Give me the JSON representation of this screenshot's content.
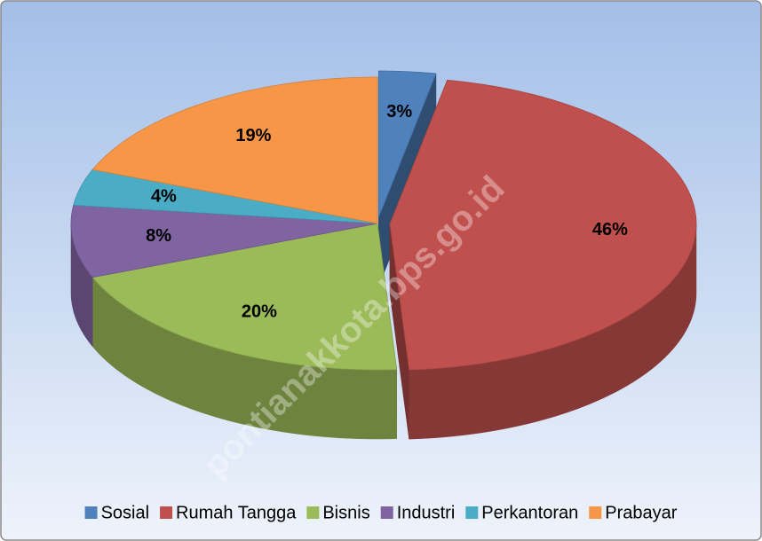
{
  "chart_data": {
    "type": "pie3d",
    "categories": [
      "Sosial",
      "Rumah Tangga",
      "Bisnis",
      "Industri",
      "Perkantoran",
      "Prabayar"
    ],
    "values": [
      3,
      46,
      20,
      8,
      4,
      19
    ],
    "value_labels": [
      "3%",
      "46%",
      "20%",
      "8%",
      "4%",
      "19%"
    ],
    "colors": [
      "#4f81bd",
      "#c0504d",
      "#9bbb59",
      "#8064a2",
      "#4bacc6",
      "#f79646"
    ],
    "legend": "bottom",
    "watermark": "pontianakkota.bps.go.id"
  }
}
